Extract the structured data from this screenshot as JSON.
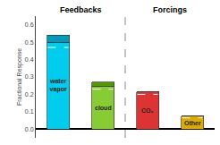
{
  "chart_data": {
    "type": "bar",
    "stacked": true,
    "categories": [
      "water\nvapor",
      "cloud",
      "CO₂",
      "Other"
    ],
    "series": [
      {
        "values": [
          0.5,
          0.245,
          0.215,
          0.075
        ],
        "colors": [
          "#00ccee",
          "#88cc33",
          "#dd3333",
          "#ddaa00"
        ]
      },
      {
        "values": [
          0.04,
          0.025,
          0,
          0
        ],
        "colors": [
          "#009bbb",
          "#559900",
          "#aa1111",
          "#bb8800"
        ]
      }
    ],
    "reference_values": [
      0.47,
      0.23,
      0.2,
      0.065
    ],
    "annotations": [
      "Feedbacks",
      "Forcings"
    ],
    "ylabel": "Fractional Response",
    "ylim": [
      -0.05,
      0.65
    ],
    "yticks": [
      {
        "value": 0,
        "label": "0.0"
      },
      0.1,
      0.2,
      0.3,
      0.4,
      0.5,
      0.6
    ],
    "grid": false
  }
}
